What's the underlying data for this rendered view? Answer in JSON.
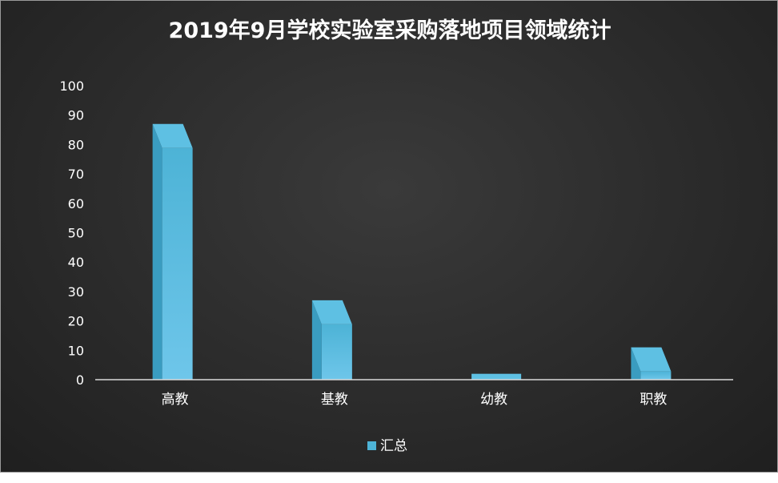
{
  "chart_data": {
    "type": "bar",
    "title": "2019年9月学校实验室采购落地项目领域统计",
    "categories": [
      "高教",
      "基教",
      "幼教",
      "职教"
    ],
    "series": [
      {
        "name": "汇总",
        "values": [
          87,
          27,
          2,
          11
        ]
      }
    ],
    "ylim": [
      0,
      100
    ],
    "yticks": [
      0,
      10,
      20,
      30,
      40,
      50,
      60,
      70,
      80,
      90,
      100
    ],
    "xlabel": "",
    "ylabel": "",
    "legend_position": "bottom",
    "grid": false,
    "bar_style": "3d",
    "colors": {
      "bar_top": "#4db3d6",
      "bar_bottom": "#6ec6ea",
      "bar_side": "#3a9cc0",
      "bar_cap": "#5ec0e3",
      "axis": "#d9d9d9",
      "text": "#ffffff",
      "background": "#2b2b2b"
    }
  }
}
